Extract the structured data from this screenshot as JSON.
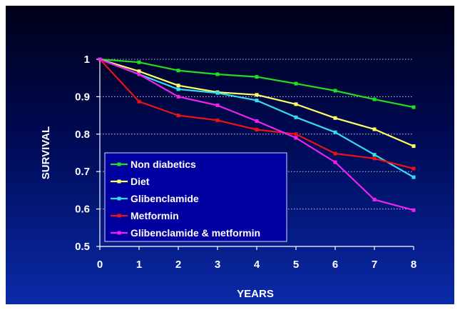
{
  "chart_data": {
    "type": "line",
    "xlabel": "YEARS",
    "ylabel": "SURVIVAL",
    "xlim": [
      0,
      8
    ],
    "ylim": [
      0.5,
      1
    ],
    "x_ticks": [
      0,
      1,
      2,
      3,
      4,
      5,
      6,
      7,
      8
    ],
    "y_ticks": [
      0.5,
      0.6,
      0.7,
      0.8,
      0.9,
      1
    ],
    "y_tick_labels": [
      "0.5",
      "0.6",
      "0.7",
      "0.8",
      "0.9",
      "1"
    ],
    "grid": "horizontal-dotted",
    "legend_position": "bottom-left",
    "x": [
      0,
      1,
      2,
      3,
      4,
      5,
      6,
      7,
      8
    ],
    "series": [
      {
        "name": "Non diabetics",
        "color": "#22dd22",
        "values": [
          1.0,
          0.992,
          0.97,
          0.96,
          0.953,
          0.935,
          0.916,
          0.893,
          0.872
        ]
      },
      {
        "name": "Diet",
        "color": "#ffff66",
        "values": [
          1.0,
          0.968,
          0.93,
          0.912,
          0.905,
          0.88,
          0.843,
          0.813,
          0.768
        ]
      },
      {
        "name": "Glibenclamide",
        "color": "#33ddee",
        "values": [
          1.0,
          0.96,
          0.92,
          0.91,
          0.89,
          0.845,
          0.805,
          0.745,
          0.685
        ]
      },
      {
        "name": "Metformin",
        "color": "#ee1111",
        "values": [
          1.0,
          0.887,
          0.85,
          0.837,
          0.812,
          0.8,
          0.748,
          0.735,
          0.708
        ]
      },
      {
        "name": "Glibenclamide & metformin",
        "color": "#ee22ee",
        "values": [
          1.0,
          0.96,
          0.9,
          0.877,
          0.835,
          0.79,
          0.725,
          0.625,
          0.597
        ]
      }
    ]
  }
}
